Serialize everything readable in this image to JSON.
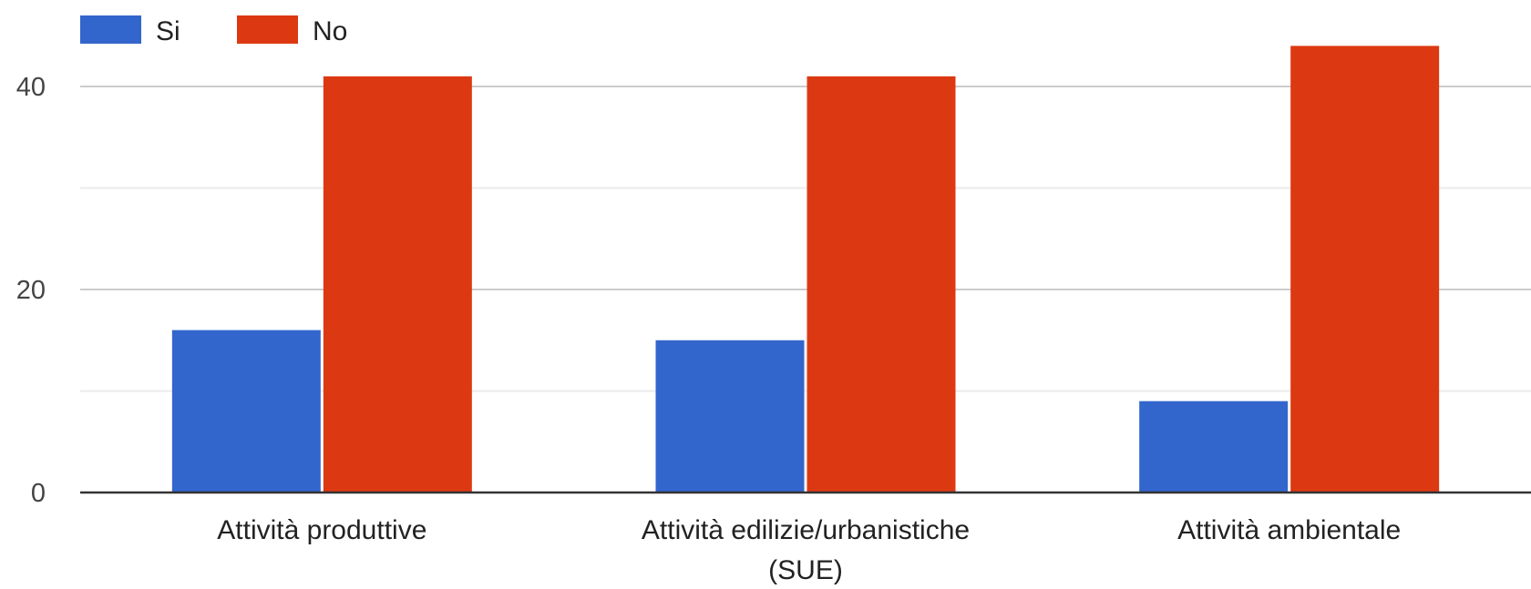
{
  "chart_data": {
    "type": "bar",
    "categories": [
      [
        "Attività produttive"
      ],
      [
        "Attività edilizie/urbanistiche",
        "(SUE)"
      ],
      [
        "Attività ambientale"
      ]
    ],
    "series": [
      {
        "name": "Si",
        "color": "#3366cc",
        "values": [
          16,
          15,
          9
        ]
      },
      {
        "name": "No",
        "color": "#dc3912",
        "values": [
          41,
          41,
          44
        ]
      }
    ],
    "yticks": [
      0,
      20,
      40
    ],
    "ylim": [
      0,
      44
    ],
    "grid": true,
    "legend": "top-left"
  }
}
